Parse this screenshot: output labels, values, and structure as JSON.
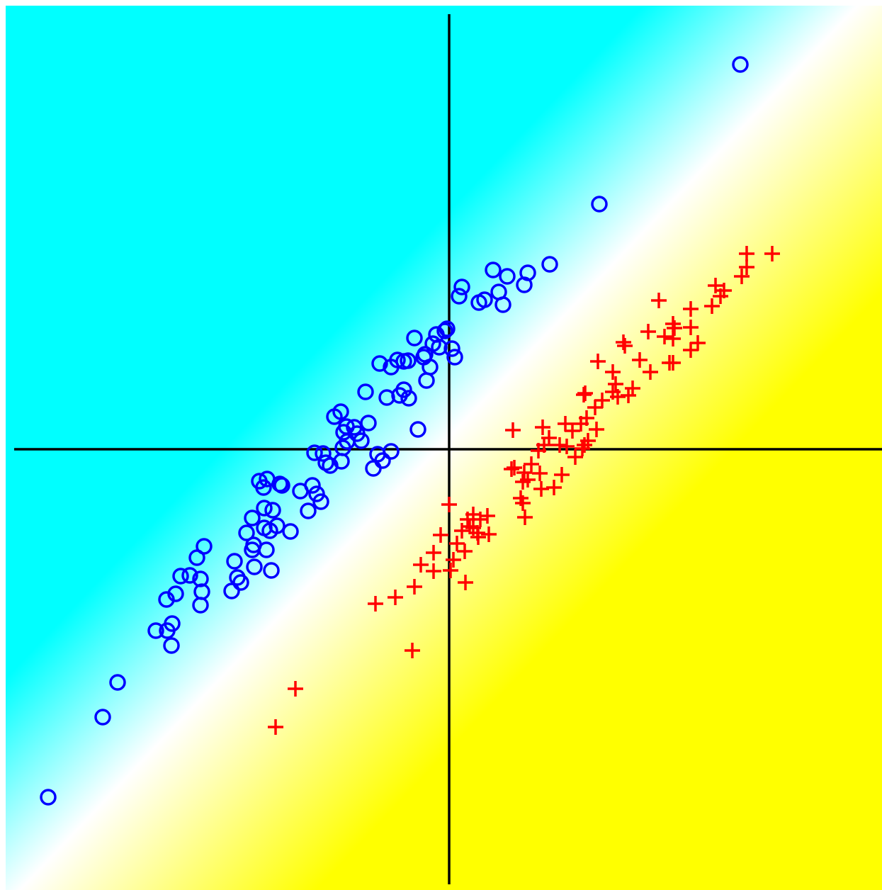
{
  "chart_data": {
    "type": "scatter",
    "xlim": [
      -626,
      611
    ],
    "ylim": [
      -622,
      626
    ],
    "background_colors": [
      "#00ffff",
      "#ffffff",
      "#ffff00"
    ],
    "axis_color": "#000000",
    "series": [
      {
        "marker": "circle",
        "color": "#0000ff",
        "x": [
          411,
          212,
          142,
          111,
          106,
          62,
          82,
          70,
          76,
          18,
          14,
          42,
          50,
          -3,
          -6,
          -18,
          -49,
          -23,
          -14,
          4,
          8,
          -34,
          -36,
          -27,
          -58,
          -64,
          -73,
          -82,
          -98,
          -32,
          -64,
          -70,
          -57,
          -88,
          -118,
          -153,
          -162,
          -114,
          -44,
          -134,
          -145,
          -149,
          -130,
          -124,
          -144,
          -150,
          -190,
          -178,
          -152,
          -168,
          -174,
          -101,
          -94,
          -82,
          -107,
          -268,
          -257,
          -262,
          -239,
          -236,
          -210,
          -193,
          -187,
          -181,
          -199,
          -261,
          -249,
          -278,
          -286,
          -261,
          -253,
          -243,
          -224,
          -276,
          -278,
          -258,
          -346,
          -356,
          -303,
          -275,
          -251,
          -379,
          -366,
          -351,
          -299,
          -294,
          -307,
          -349,
          -386,
          -399,
          -351,
          -391,
          -398,
          -414,
          -392,
          -468,
          -489,
          -566
        ],
        "y": [
          543,
          346,
          261,
          249,
          232,
          253,
          244,
          222,
          204,
          229,
          216,
          207,
          211,
          170,
          167,
          162,
          157,
          149,
          144,
          142,
          130,
          134,
          130,
          116,
          125,
          124,
          126,
          116,
          121,
          97,
          84,
          76,
          72,
          73,
          81,
          53,
          46,
          37,
          28,
          31,
          32,
          24,
          22,
          12,
          11,
          2,
          -5,
          -6,
          -17,
          -23,
          -19,
          -7,
          -16,
          -3,
          -27,
          -45,
          -42,
          -54,
          -49,
          -51,
          -59,
          -51,
          -63,
          -74,
          -87,
          -83,
          -86,
          -97,
          -118,
          -111,
          -115,
          -108,
          -116,
          -135,
          -142,
          -142,
          -137,
          -153,
          -158,
          -166,
          -171,
          -179,
          -178,
          -183,
          -181,
          -188,
          -200,
          -201,
          -204,
          -212,
          -220,
          -246,
          -256,
          -256,
          -277,
          -329,
          -378,
          -491
        ]
      },
      {
        "marker": "plus",
        "color": "#ff0000",
        "x": [
          456,
          420,
          420,
          413,
          376,
          388,
          383,
          371,
          296,
          341,
          316,
          318,
          341,
          281,
          304,
          316,
          351,
          246,
          248,
          341,
          269,
          311,
          316,
          210,
          231,
          284,
          235,
          259,
          231,
          253,
          238,
          190,
          192,
          216,
          206,
          194,
          164,
          186,
          174,
          208,
          132,
          90,
          141,
          134,
          156,
          166,
          191,
          196,
          188,
          126,
          178,
          92,
          88,
          116,
          106,
          128,
          159,
          104,
          111,
          148,
          130,
          101,
          104,
          107,
          0,
          34,
          54,
          44,
          26,
          29,
          18,
          34,
          40,
          56,
          41,
          -12,
          11,
          22,
          -22,
          6,
          -40,
          2,
          -22,
          -49,
          23,
          -76,
          -104,
          -52,
          -217,
          -245
        ],
        "y": [
          276,
          276,
          257,
          244,
          231,
          224,
          216,
          202,
          210,
          198,
          177,
          171,
          172,
          166,
          159,
          156,
          150,
          151,
          146,
          140,
          126,
          122,
          122,
          124,
          109,
          109,
          92,
          86,
          81,
          76,
          74,
          77,
          79,
          69,
          59,
          44,
          36,
          36,
          26,
          28,
          31,
          27,
          16,
          6,
          6,
          4,
          6,
          12,
          1,
          -2,
          -11,
          -26,
          -28,
          -21,
          -33,
          -34,
          -36,
          -46,
          -43,
          -54,
          -56,
          -69,
          -76,
          -96,
          -78,
          -92,
          -94,
          -99,
          -99,
          -109,
          -115,
          -111,
          -118,
          -120,
          -124,
          -121,
          -133,
          -144,
          -146,
          -156,
          -163,
          -171,
          -172,
          -194,
          -188,
          -209,
          -218,
          -284,
          -338,
          -392
        ]
      }
    ]
  }
}
